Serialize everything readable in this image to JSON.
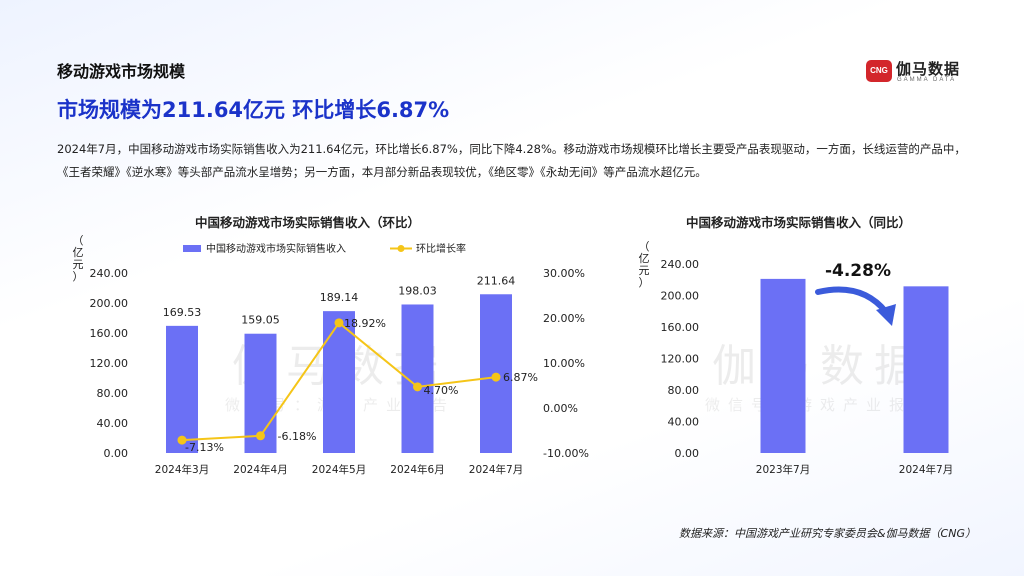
{
  "page": {
    "section_title": "移动游戏市场规模",
    "headline": "市场规模为211.64亿元 环比增长6.87%",
    "summary": "2024年7月，中国移动游戏市场实际销售收入为211.64亿元，环比增长6.87%，同比下降4.28%。移动游戏市场规模环比增长主要受产品表现驱动，一方面，长线运营的产品中，《王者荣耀》《逆水寒》等头部产品流水呈增势；另一方面，本月部分新品表现较优，《绝区零》《永劫无间》等产品流水超亿元。",
    "source": "数据来源：中国游戏产业研究专家委员会&伽马数据（CNG）"
  },
  "logo": {
    "mark": "CNG",
    "name": "伽马数据",
    "subtitle": "GAMMA DATA"
  },
  "watermark": {
    "main": "伽马数据",
    "sub": "微信号：游戏产业报告"
  },
  "colors": {
    "bar": "#6b70f5",
    "line": "#f5c518",
    "headline": "#1b33c9",
    "arrow": "#3b5bdb"
  },
  "chart_data": [
    {
      "type": "bar",
      "title": "中国移动游戏市场实际销售收入（环比）",
      "ylabel": "（亿元）",
      "categories": [
        "2024年3月",
        "2024年4月",
        "2024年5月",
        "2024年6月",
        "2024年7月"
      ],
      "series": [
        {
          "name": "中国移动游戏市场实际销售收入",
          "type": "bar",
          "axis": "left",
          "values": [
            169.53,
            159.05,
            189.14,
            198.03,
            211.64
          ],
          "labels": [
            "169.53",
            "159.05",
            "189.14",
            "198.03",
            "211.64"
          ]
        },
        {
          "name": "环比增长率",
          "type": "line",
          "axis": "right",
          "values": [
            -7.13,
            -6.18,
            18.92,
            4.7,
            6.87
          ],
          "labels": [
            "-7.13%",
            "-6.18%",
            "18.92%",
            "4.70%",
            "6.87%"
          ]
        }
      ],
      "ylim": [
        0,
        240
      ],
      "yticks": [
        "0.00",
        "40.00",
        "80.00",
        "120.00",
        "160.00",
        "200.00",
        "240.00"
      ],
      "y2lim": [
        -10,
        30
      ],
      "y2ticks": [
        "-10.00%",
        "0.00%",
        "10.00%",
        "20.00%",
        "30.00%"
      ],
      "legend": "top"
    },
    {
      "type": "bar",
      "title": "中国移动游戏市场实际销售收入（同比）",
      "ylabel": "（亿元）",
      "categories": [
        "2023年7月",
        "2024年7月"
      ],
      "values": [
        221.1,
        211.64
      ],
      "ylim": [
        0,
        240
      ],
      "yticks": [
        "0.00",
        "40.00",
        "80.00",
        "120.00",
        "160.00",
        "200.00",
        "240.00"
      ],
      "annotation": "-4.28%"
    }
  ]
}
